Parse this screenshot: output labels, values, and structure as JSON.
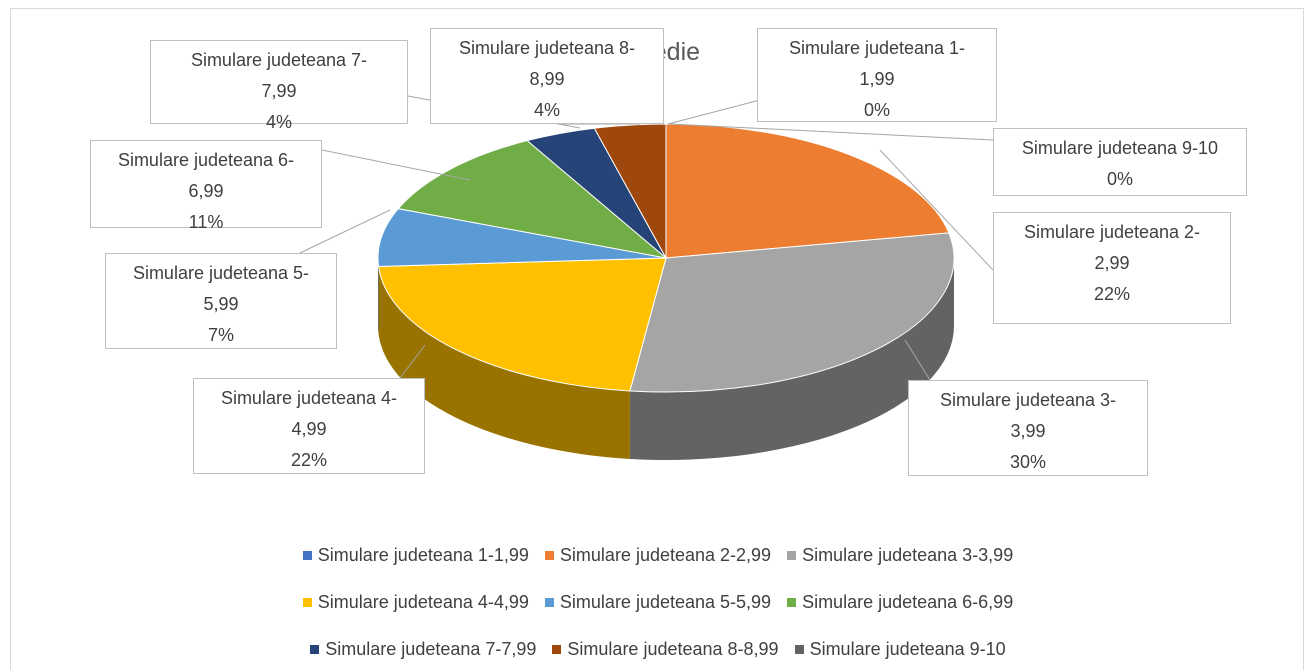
{
  "chart_data": {
    "type": "pie3d",
    "title": "Medie",
    "categories": [
      "Simulare judeteana 1-1,99",
      "Simulare judeteana 2-2,99",
      "Simulare judeteana 3-3,99",
      "Simulare judeteana 4-4,99",
      "Simulare judeteana 5-5,99",
      "Simulare judeteana 6-6,99",
      "Simulare judeteana 7-7,99",
      "Simulare judeteana 8-8,99",
      "Simulare judeteana 9-10"
    ],
    "values": [
      0,
      22,
      30,
      22,
      7,
      11,
      4,
      4,
      0
    ],
    "value_labels": [
      "0%",
      "22%",
      "30%",
      "22%",
      "7%",
      "11%",
      "4%",
      "4%",
      "0%"
    ],
    "colors": [
      "#4472c4",
      "#ed7d31",
      "#a5a5a5",
      "#ffc000",
      "#5b9bd5",
      "#70ad47",
      "#264478",
      "#9e480e",
      "#636363"
    ],
    "legend": "bottom"
  }
}
